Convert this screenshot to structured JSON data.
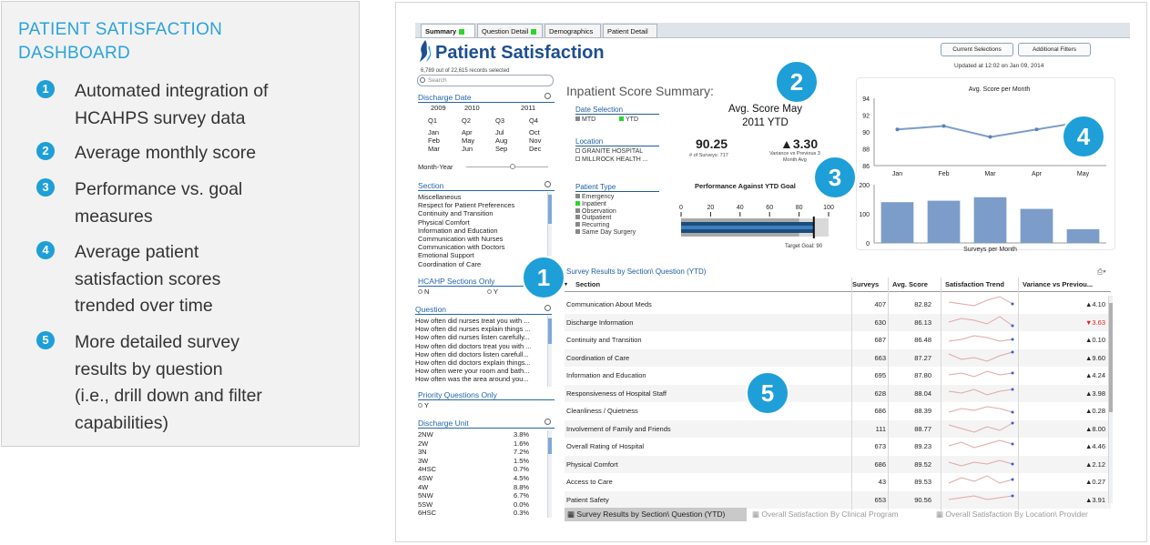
{
  "info": {
    "title_line1": "PATIENT SATISFACTION",
    "title_line2": "DASHBOARD",
    "items": [
      {
        "num": "1",
        "lines": [
          "Automated integration of",
          "HCAHPS survey data"
        ]
      },
      {
        "num": "2",
        "lines": [
          "Average monthly score"
        ]
      },
      {
        "num": "3",
        "lines": [
          "Performance vs. goal",
          "measures"
        ]
      },
      {
        "num": "4",
        "lines": [
          "Average patient",
          "satisfaction scores",
          "trended over time"
        ]
      },
      {
        "num": "5",
        "lines": [
          "More detailed survey",
          "results by question",
          "(i.e., drill down and filter",
          "capabilities)"
        ]
      }
    ]
  },
  "tabs": [
    "Summary",
    "Question Detail",
    "Demographics",
    "Patient Detail"
  ],
  "app_title": "Patient Satisfaction",
  "records": "6,789 out of 22,615 records selected",
  "buttons": {
    "current": "Current Selections",
    "filters": "Additional Filters"
  },
  "updated": "Updated at 12:02 on Jan 09, 2014",
  "search_placeholder": "Search",
  "discharge_date": {
    "label": "Discharge Date",
    "years": [
      "2009",
      "2010",
      "2011"
    ],
    "quarters": [
      "Q1",
      "Q2",
      "Q3",
      "Q4"
    ],
    "months": [
      [
        "Jan",
        "Feb",
        "Mar"
      ],
      [
        "Apr",
        "May",
        "Jun"
      ],
      [
        "Jul",
        "Aug",
        "Sep"
      ],
      [
        "Oct",
        "Nov",
        "Dec"
      ]
    ],
    "month_year": "Month-Year"
  },
  "section": {
    "label": "Section",
    "items": [
      "Miscellaneous",
      "Respect for Patient Preferences",
      "Continuity and Transition",
      "Physical Comfort",
      "Information and Education",
      "Communication with Nurses",
      "Communication with Doctors",
      "Emotional Support",
      "Coordination of Care"
    ]
  },
  "hcahp": {
    "label": "HCAHP Sections Only",
    "n": "N",
    "y": "Y"
  },
  "question": {
    "label": "Question",
    "items": [
      "How often did nurses treat you with ...",
      "How often did nurses explain things ...",
      "How often did nurses listen carefully...",
      "How often did doctors treat you with ...",
      "How often did doctors listen carefull...",
      "How often did doctors explain things...",
      "How often were your room and bath...",
      "How often was the area around you..."
    ]
  },
  "priority": {
    "label": "Priority Questions Only",
    "y": "Y"
  },
  "discharge_unit": {
    "label": "Discharge Unit",
    "items": [
      [
        "2NW",
        "3.8%"
      ],
      [
        "2W",
        "1.6%"
      ],
      [
        "3N",
        "7.2%"
      ],
      [
        "3W",
        "1.5%"
      ],
      [
        "4HSC",
        "0.7%"
      ],
      [
        "4SW",
        "4.5%"
      ],
      [
        "4W",
        "8.8%"
      ],
      [
        "5NW",
        "6.7%"
      ],
      [
        "5SW",
        "0.0%"
      ],
      [
        "6HSC",
        "0.3%"
      ]
    ]
  },
  "summary": {
    "title": "Inpatient Score Summary:",
    "date_selection": "Date Selection",
    "mtd": "MTD",
    "ytd": "YTD",
    "location": "Location",
    "locations": [
      "GRANITE HOSPITAL",
      "MILLROCK HEALTH ..."
    ],
    "patient_type": "Patient Type",
    "patient_types": [
      "Emergency",
      "Inpatient",
      "Observation",
      "Outpatient",
      "Recurring",
      "Same Day Surgery"
    ],
    "avg_label_1": "Avg. Score  May",
    "avg_label_2": "2011 YTD",
    "score": "90.25",
    "surveys_note": "# of Surveys: 717",
    "variance": "▲3.30",
    "variance_note_1": "Variance vs Previous 3",
    "variance_note_2": "Month Avg",
    "perf_title": "Performance Against YTD Goal",
    "perf_value": 90.25,
    "perf_goal": 90,
    "perf_ticks": [
      "0",
      "20",
      "40",
      "60",
      "80",
      "100"
    ],
    "target": "Target Goal: 90"
  },
  "chart_data": [
    {
      "type": "line",
      "title": "Avg. Score per Month",
      "categories": [
        "Jan",
        "Feb",
        "Mar",
        "Apr",
        "May"
      ],
      "series": [
        {
          "values": [
            90.3,
            90.7,
            89.4,
            90.3,
            91.2
          ]
        }
      ],
      "ylim": [
        86,
        94
      ],
      "yticks": [
        "86",
        "88",
        "90",
        "92",
        "94"
      ],
      "grid": false
    },
    {
      "type": "bar",
      "title": "",
      "xlabel": "Surveys per Month",
      "categories": [
        "Jan",
        "Feb",
        "Mar",
        "Apr",
        "May"
      ],
      "values": [
        140,
        145,
        157,
        117,
        47
      ],
      "ylim": [
        0,
        200
      ],
      "yticks": [
        "0",
        "100",
        "200"
      ]
    }
  ],
  "table": {
    "title": "Survey Results by Section\\ Question (YTD)",
    "headers": [
      "Section",
      "Surveys",
      "Avg. Score",
      "Satisfaction Trend",
      "Variance vs Previou..."
    ],
    "rows": [
      {
        "section": "Communication About Meds",
        "surveys": "407",
        "score": "82.82",
        "variance": "▲4.10",
        "down": false,
        "trend": [
          5,
          4,
          3,
          6,
          8,
          4
        ]
      },
      {
        "section": "Discharge Information",
        "surveys": "630",
        "score": "86.13",
        "variance": "▼3.63",
        "down": true,
        "trend": [
          4,
          6,
          5,
          3,
          7,
          2
        ]
      },
      {
        "section": "Continuity and Transition",
        "surveys": "687",
        "score": "86.48",
        "variance": "▲0.10",
        "down": false,
        "trend": [
          3,
          4,
          6,
          5,
          3,
          4
        ]
      },
      {
        "section": "Coordination of Care",
        "surveys": "663",
        "score": "87.27",
        "variance": "▲9.60",
        "down": false,
        "trend": [
          6,
          3,
          4,
          2,
          5,
          7
        ]
      },
      {
        "section": "Information and Education",
        "surveys": "695",
        "score": "87.80",
        "variance": "▲4.24",
        "down": false,
        "trend": [
          4,
          5,
          3,
          6,
          4,
          5
        ]
      },
      {
        "section": "Responsiveness of Hospital Staff",
        "surveys": "628",
        "score": "88.04",
        "variance": "▲3.98",
        "down": false,
        "trend": [
          5,
          4,
          6,
          3,
          5,
          6
        ]
      },
      {
        "section": "Cleanliness / Quietness",
        "surveys": "686",
        "score": "88.39",
        "variance": "▲0.28",
        "down": false,
        "trend": [
          3,
          5,
          4,
          6,
          5,
          3
        ]
      },
      {
        "section": "Involvement of Family and Friends",
        "surveys": "111",
        "score": "88.77",
        "variance": "▲8.00",
        "down": false,
        "trend": [
          6,
          4,
          2,
          5,
          3,
          7
        ]
      },
      {
        "section": "Overall Rating of Hospital",
        "surveys": "673",
        "score": "89.23",
        "variance": "▲4.46",
        "down": false,
        "trend": [
          4,
          6,
          3,
          5,
          7,
          5
        ]
      },
      {
        "section": "Physical Comfort",
        "surveys": "686",
        "score": "89.52",
        "variance": "▲2.12",
        "down": false,
        "trend": [
          5,
          3,
          5,
          4,
          6,
          4
        ]
      },
      {
        "section": "Access to Care",
        "surveys": "43",
        "score": "89.53",
        "variance": "▲0.27",
        "down": false,
        "trend": [
          3,
          6,
          4,
          7,
          3,
          5
        ]
      },
      {
        "section": "Patient Safety",
        "surveys": "653",
        "score": "90.56",
        "variance": "▲3.91",
        "down": false,
        "trend": [
          4,
          5,
          6,
          4,
          5,
          6
        ]
      }
    ]
  },
  "bottom_tabs": [
    "Survey Results by Section\\ Question (YTD)",
    "Overall Satisfaction By Clinical Program",
    "Overall Satisfaction By Location\\ Provider"
  ],
  "callouts": [
    "1",
    "2",
    "3",
    "4",
    "5"
  ],
  "colors": {
    "accent": "#1e9fd8",
    "title_blue": "#1d4f91",
    "bar": "#7c9dc9",
    "line": "#7c9dc9",
    "down": "#e02020"
  }
}
